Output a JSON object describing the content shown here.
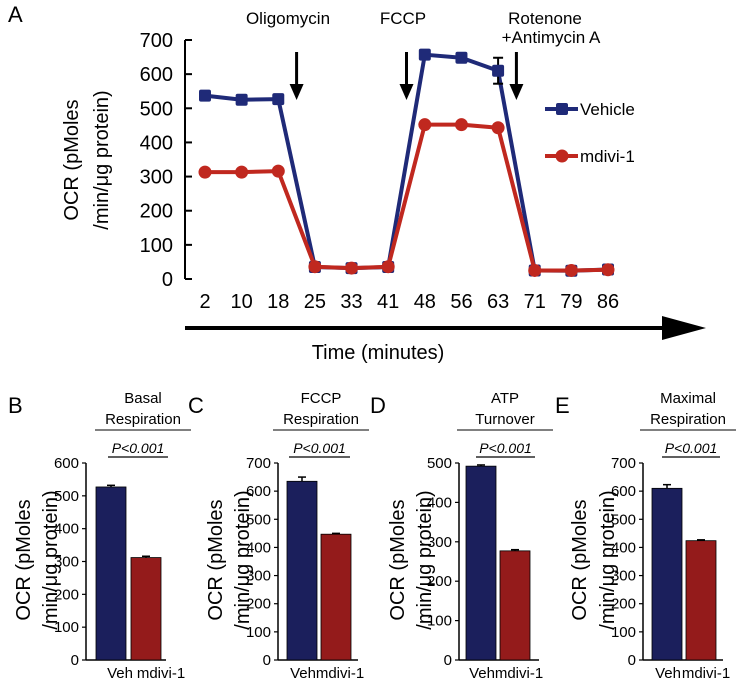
{
  "colors": {
    "vehicle": "#1f2a78",
    "mdivi": "#c0281f",
    "bar_vehicle": "#1b1f5c",
    "bar_mdivi": "#941b1b",
    "axis": "#000000"
  },
  "chart_data": [
    {
      "id": "A",
      "type": "line",
      "panel_label": "A",
      "categories": [
        "2",
        "10",
        "18",
        "25",
        "33",
        "41",
        "48",
        "56",
        "63",
        "71",
        "79",
        "86"
      ],
      "ylabel_lines": [
        "OCR (pMoles",
        "/min/μg protein)"
      ],
      "xlabel": "Time (minutes)",
      "ylim": [
        0,
        700
      ],
      "yticks": [
        "0",
        "100",
        "200",
        "300",
        "400",
        "500",
        "600",
        "700"
      ],
      "injections": [
        {
          "label_lines": [
            "Oligomycin"
          ],
          "after_index": 2
        },
        {
          "label_lines": [
            "FCCP"
          ],
          "after_index": 5
        },
        {
          "label_lines": [
            "Rotenone",
            "+Antimycin A"
          ],
          "after_index": 8
        }
      ],
      "legend_position": "right",
      "series": [
        {
          "name": "Vehicle",
          "color_key": "vehicle",
          "values": [
            537,
            525,
            527,
            35,
            32,
            35,
            657,
            648,
            610,
            25,
            24,
            28
          ],
          "errors": [
            0,
            0,
            0,
            0,
            0,
            0,
            0,
            0,
            38,
            0,
            0,
            0
          ]
        },
        {
          "name": "mdivi-1",
          "color_key": "mdivi",
          "values": [
            313,
            313,
            316,
            36,
            32,
            36,
            452,
            452,
            443,
            25,
            25,
            27
          ],
          "errors": [
            0,
            0,
            0,
            0,
            0,
            0,
            0,
            0,
            0,
            0,
            0,
            0
          ]
        }
      ]
    },
    {
      "id": "B",
      "type": "bar",
      "panel_label": "B",
      "title_lines": [
        "Basal",
        "Respiration"
      ],
      "significance": "P<0.001",
      "ylabel_lines": [
        "OCR (pMoles",
        "/min/μg protein)"
      ],
      "categories": [
        "Veh",
        "mdivi-1"
      ],
      "values": [
        527,
        312
      ],
      "errors": [
        5,
        4
      ],
      "ylim": [
        0,
        600
      ],
      "yticks": [
        "0",
        "100",
        "200",
        "300",
        "400",
        "500",
        "600"
      ]
    },
    {
      "id": "C",
      "type": "bar",
      "panel_label": "C",
      "title_lines": [
        "FCCP",
        "Respiration"
      ],
      "significance": "P<0.001",
      "ylabel_lines": [
        "OCR (pMoles",
        "/min/μg protein)"
      ],
      "categories": [
        "Veh",
        "mdivi-1"
      ],
      "values": [
        635,
        447
      ],
      "errors": [
        15,
        3
      ],
      "ylim": [
        0,
        700
      ],
      "yticks": [
        "0",
        "100",
        "200",
        "300",
        "400",
        "500",
        "600",
        "700"
      ]
    },
    {
      "id": "D",
      "type": "bar",
      "panel_label": "D",
      "title_lines": [
        "ATP",
        "Turnover"
      ],
      "significance": "P<0.001",
      "ylabel_lines": [
        "OCR (pMoles",
        "/min/μg protein)"
      ],
      "categories": [
        "Veh",
        "mdivi-1"
      ],
      "values": [
        492,
        277
      ],
      "errors": [
        3,
        3
      ],
      "ylim": [
        0,
        500
      ],
      "yticks": [
        "0",
        "100",
        "200",
        "300",
        "400",
        "500"
      ]
    },
    {
      "id": "E",
      "type": "bar",
      "panel_label": "E",
      "title_lines": [
        "Maximal",
        "Respiration"
      ],
      "significance": "P<0.001",
      "ylabel_lines": [
        "OCR (pMoles",
        "/min/μg protein)"
      ],
      "categories": [
        "Veh",
        "mdivi-1"
      ],
      "values": [
        610,
        424
      ],
      "errors": [
        13,
        3
      ],
      "ylim": [
        0,
        700
      ],
      "yticks": [
        "0",
        "100",
        "200",
        "300",
        "400",
        "500",
        "600",
        "700"
      ]
    }
  ]
}
